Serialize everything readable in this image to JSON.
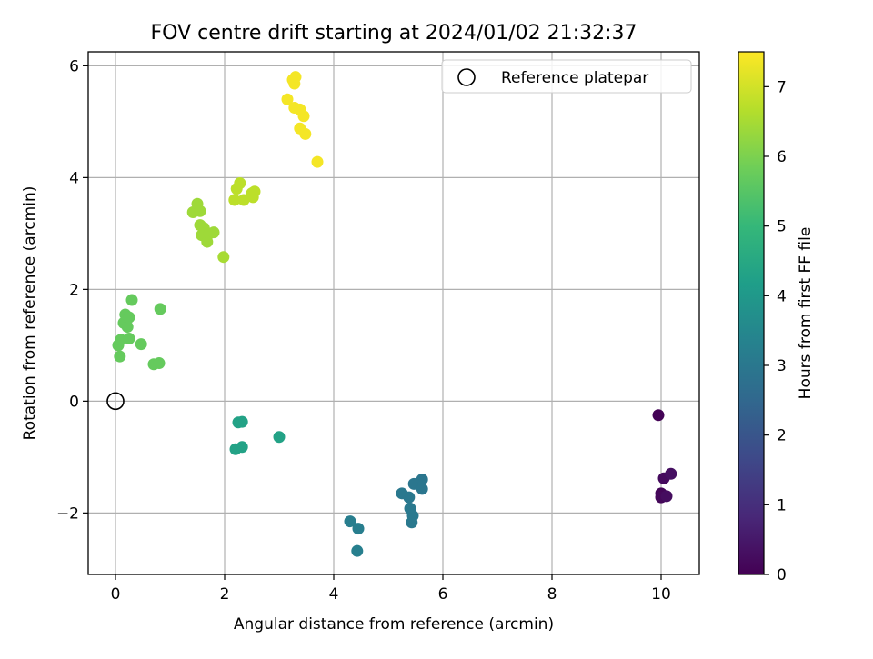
{
  "chart_data": {
    "type": "scatter",
    "title": "FOV centre drift starting at 2024/01/02 21:32:37",
    "xlabel": "Angular distance from reference (arcmin)",
    "ylabel": "Rotation from reference (arcmin)",
    "xlim": [
      -0.5,
      10.7
    ],
    "ylim": [
      -3.1,
      6.25
    ],
    "xticks": [
      0,
      2,
      4,
      6,
      8,
      10
    ],
    "yticks": [
      -2,
      0,
      2,
      4,
      6
    ],
    "xtick_labels": [
      "0",
      "2",
      "4",
      "6",
      "8",
      "10"
    ],
    "ytick_labels": [
      "−2",
      "0",
      "2",
      "4",
      "6"
    ],
    "grid": true,
    "legend": {
      "position": "top-right",
      "entries": [
        "Reference platepar"
      ]
    },
    "reference_point": {
      "name": "Reference platepar",
      "x": 0,
      "y": 0
    },
    "colorbar": {
      "label": "Hours from first FF file",
      "range": [
        0,
        7.5
      ],
      "ticks": [
        0,
        1,
        2,
        3,
        4,
        5,
        6,
        7
      ],
      "tick_labels": [
        "0",
        "1",
        "2",
        "3",
        "4",
        "5",
        "6",
        "7"
      ],
      "colormap": "viridis"
    },
    "points": [
      {
        "x": 9.95,
        "y": -0.25,
        "t": 0.05
      },
      {
        "x": 10.0,
        "y": -1.65,
        "t": 0.1
      },
      {
        "x": 10.0,
        "y": -1.72,
        "t": 0.15
      },
      {
        "x": 10.05,
        "y": -1.38,
        "t": 0.2
      },
      {
        "x": 10.1,
        "y": -1.7,
        "t": 0.25
      },
      {
        "x": 10.18,
        "y": -1.3,
        "t": 0.3
      },
      {
        "x": 4.3,
        "y": -2.15,
        "t": 3.2
      },
      {
        "x": 4.45,
        "y": -2.28,
        "t": 3.2
      },
      {
        "x": 4.43,
        "y": -2.68,
        "t": 3.25
      },
      {
        "x": 5.25,
        "y": -1.65,
        "t": 3.0
      },
      {
        "x": 5.38,
        "y": -1.72,
        "t": 3.0
      },
      {
        "x": 5.4,
        "y": -1.92,
        "t": 3.05
      },
      {
        "x": 5.45,
        "y": -2.05,
        "t": 3.05
      },
      {
        "x": 5.43,
        "y": -2.17,
        "t": 3.05
      },
      {
        "x": 5.47,
        "y": -1.48,
        "t": 2.95
      },
      {
        "x": 5.62,
        "y": -1.4,
        "t": 2.95
      },
      {
        "x": 5.62,
        "y": -1.57,
        "t": 2.95
      },
      {
        "x": 2.25,
        "y": -0.38,
        "t": 4.3
      },
      {
        "x": 2.32,
        "y": -0.37,
        "t": 4.3
      },
      {
        "x": 2.2,
        "y": -0.86,
        "t": 4.3
      },
      {
        "x": 2.32,
        "y": -0.82,
        "t": 4.3
      },
      {
        "x": 3.0,
        "y": -0.64,
        "t": 4.3
      },
      {
        "x": 0.05,
        "y": 1.0,
        "t": 5.7
      },
      {
        "x": 0.1,
        "y": 1.1,
        "t": 5.7
      },
      {
        "x": 0.08,
        "y": 0.8,
        "t": 5.7
      },
      {
        "x": 0.15,
        "y": 1.4,
        "t": 5.7
      },
      {
        "x": 0.18,
        "y": 1.55,
        "t": 5.7
      },
      {
        "x": 0.22,
        "y": 1.33,
        "t": 5.7
      },
      {
        "x": 0.25,
        "y": 1.5,
        "t": 5.7
      },
      {
        "x": 0.25,
        "y": 1.12,
        "t": 5.7
      },
      {
        "x": 0.3,
        "y": 1.81,
        "t": 5.7
      },
      {
        "x": 0.47,
        "y": 1.02,
        "t": 5.7
      },
      {
        "x": 0.7,
        "y": 0.66,
        "t": 5.7
      },
      {
        "x": 0.8,
        "y": 0.68,
        "t": 5.7
      },
      {
        "x": 0.82,
        "y": 1.65,
        "t": 5.7
      },
      {
        "x": 1.42,
        "y": 3.38,
        "t": 6.4
      },
      {
        "x": 1.5,
        "y": 3.53,
        "t": 6.4
      },
      {
        "x": 1.55,
        "y": 3.4,
        "t": 6.4
      },
      {
        "x": 1.55,
        "y": 3.15,
        "t": 6.4
      },
      {
        "x": 1.58,
        "y": 2.97,
        "t": 6.4
      },
      {
        "x": 1.62,
        "y": 3.1,
        "t": 6.4
      },
      {
        "x": 1.68,
        "y": 2.85,
        "t": 6.4
      },
      {
        "x": 1.72,
        "y": 3.0,
        "t": 6.4
      },
      {
        "x": 1.8,
        "y": 3.02,
        "t": 6.4
      },
      {
        "x": 1.98,
        "y": 2.58,
        "t": 6.5
      },
      {
        "x": 2.18,
        "y": 3.6,
        "t": 6.75
      },
      {
        "x": 2.22,
        "y": 3.8,
        "t": 6.75
      },
      {
        "x": 2.28,
        "y": 3.9,
        "t": 6.75
      },
      {
        "x": 2.35,
        "y": 3.6,
        "t": 6.75
      },
      {
        "x": 2.5,
        "y": 3.72,
        "t": 6.75
      },
      {
        "x": 2.52,
        "y": 3.65,
        "t": 6.75
      },
      {
        "x": 2.55,
        "y": 3.75,
        "t": 6.75
      },
      {
        "x": 3.15,
        "y": 5.4,
        "t": 7.4
      },
      {
        "x": 3.25,
        "y": 5.75,
        "t": 7.4
      },
      {
        "x": 3.3,
        "y": 5.8,
        "t": 7.4
      },
      {
        "x": 3.28,
        "y": 5.68,
        "t": 7.4
      },
      {
        "x": 3.28,
        "y": 5.25,
        "t": 7.4
      },
      {
        "x": 3.38,
        "y": 5.22,
        "t": 7.4
      },
      {
        "x": 3.45,
        "y": 5.1,
        "t": 7.4
      },
      {
        "x": 3.38,
        "y": 4.88,
        "t": 7.4
      },
      {
        "x": 3.48,
        "y": 4.78,
        "t": 7.4
      },
      {
        "x": 3.7,
        "y": 4.28,
        "t": 7.4
      }
    ]
  }
}
